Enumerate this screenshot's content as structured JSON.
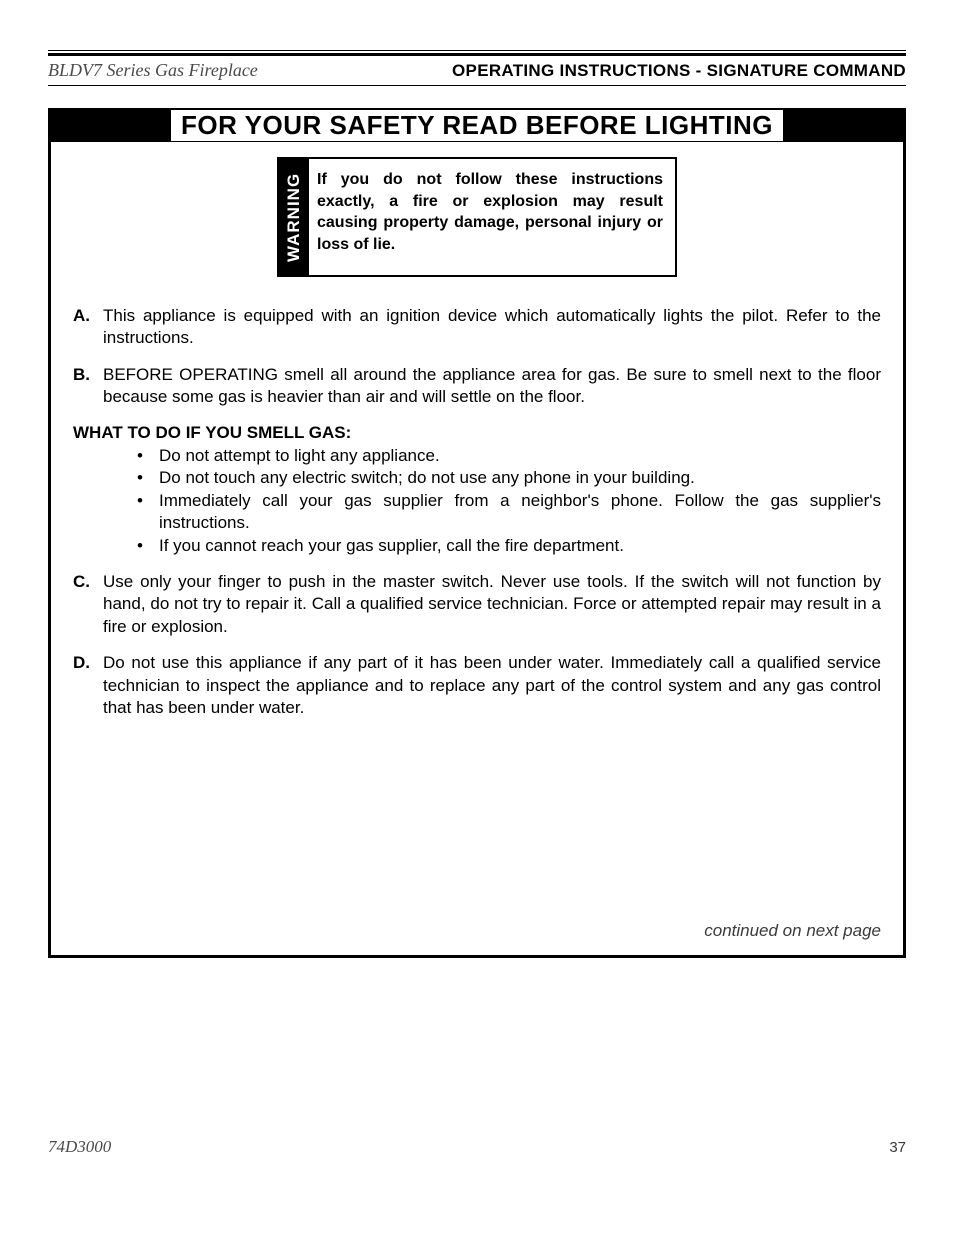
{
  "colors": {
    "text": "#000000",
    "background": "#ffffff",
    "banner_bg": "#000000",
    "muted": "#4a4a4a"
  },
  "typography": {
    "body_family": "Arial, Helvetica, sans-serif",
    "serif_italic_family": "Georgia, 'Times New Roman', serif",
    "body_size_pt": 12,
    "banner_size_pt": 20,
    "header_size_pt": 13
  },
  "header": {
    "product": "BLDV7 Series Gas Fireplace",
    "section": "OPERATING INSTRUCTIONS - SIGNATURE COMMAND"
  },
  "banner": "FOR YOUR SAFETY READ BEFORE LIGHTING",
  "warning": {
    "tab": "WARNING",
    "text": "If you do not follow these instructions exactly, a fire or explosion may result causing property damage, personal injury or loss of lie."
  },
  "instructions": [
    {
      "marker": "A.",
      "text": "This appliance is equipped with an ignition device which automatically lights the pilot. Refer to the instructions."
    },
    {
      "marker": "B.",
      "text": "BEFORE OPERATING smell all around the appliance area for gas. Be sure to smell next to the floor because some gas is heavier than air and will settle on the floor."
    }
  ],
  "smell_gas": {
    "heading": "WHAT TO DO IF YOU SMELL GAS:",
    "bullets": [
      "Do not attempt to light any appliance.",
      "Do not touch any electric switch; do not use any phone in your building.",
      "Immediately call your gas supplier from a neighbor's phone. Follow the gas supplier's instructions.",
      "If you cannot reach your gas supplier, call the fire department."
    ]
  },
  "instructions2": [
    {
      "marker": "C.",
      "text": "Use only your finger to push in the master switch. Never use tools. If the switch will not function by hand, do not try to repair it. Call a qualified service technician. Force or attempted repair may result in a fire or explosion."
    },
    {
      "marker": "D.",
      "text": "Do not use this appliance if any part of it has been under water. Immediately call a qualified service technician to inspect the appliance and to replace any part of the control system and any gas control that has been under water."
    }
  ],
  "continued": "continued on next page",
  "footer": {
    "doc_code": "74D3000",
    "page": "37"
  }
}
